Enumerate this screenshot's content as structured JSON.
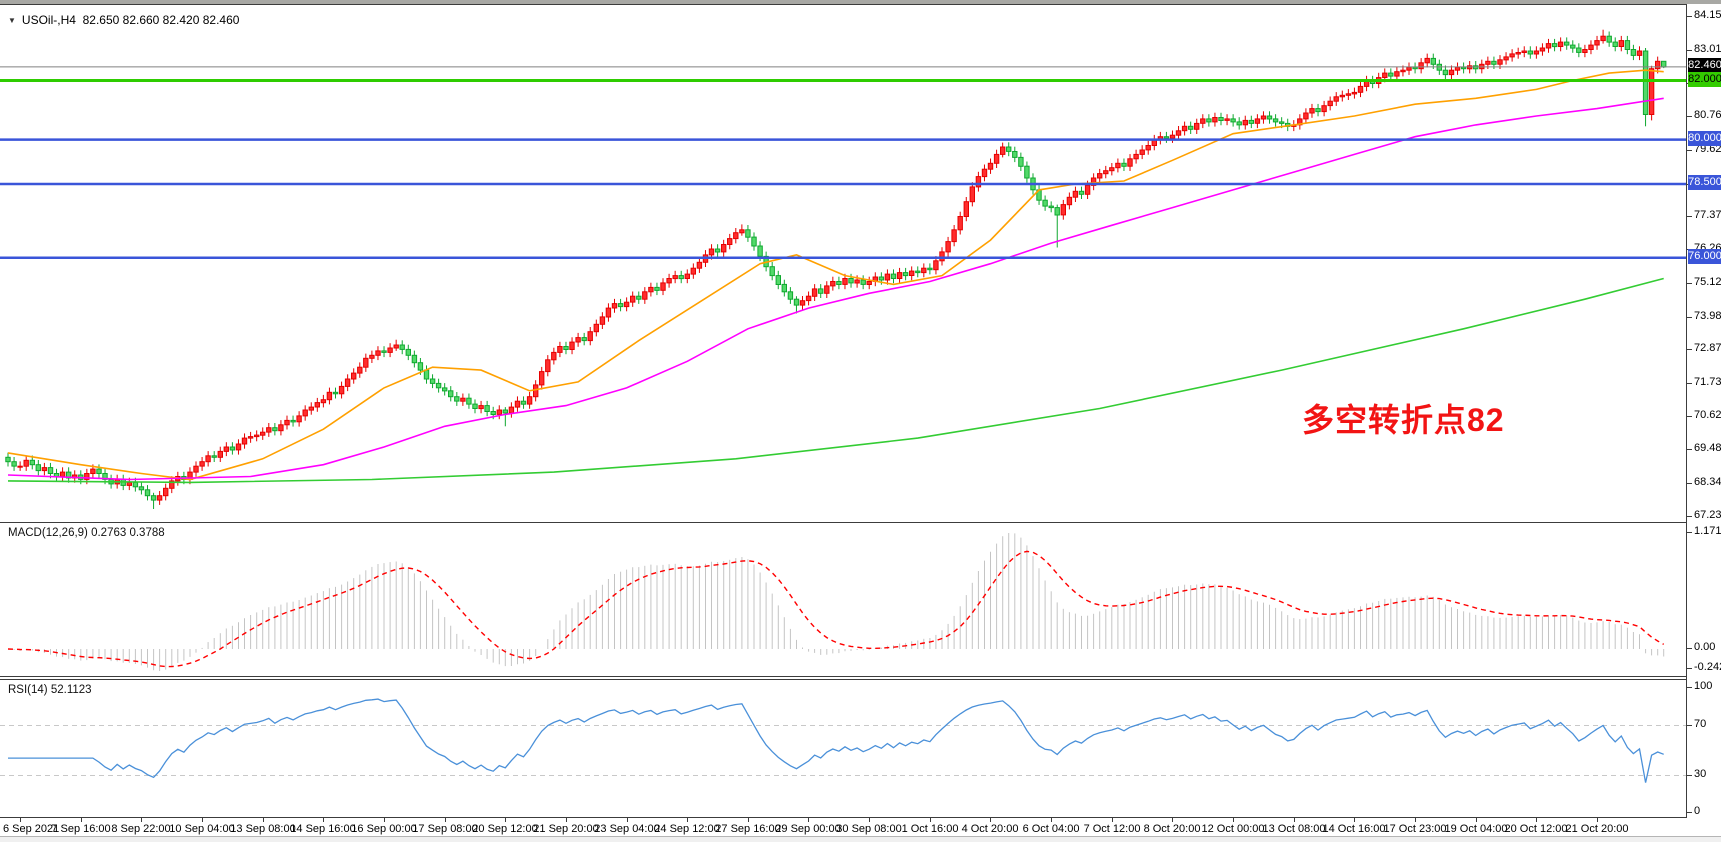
{
  "header": {
    "collapse_icon": "▼",
    "symbol": "USOil-,H4",
    "ohlc": "82.650 82.660 82.420 82.460"
  },
  "annotation": {
    "text": "多空转折点82"
  },
  "colors": {
    "up_fill": "#ff2d2d",
    "up_stroke": "#e60000",
    "down_fill": "#52d969",
    "down_stroke": "#0fa82f",
    "ma_fast": "#ffa000",
    "ma_mid": "#ff00ff",
    "ma_slow": "#33cc33",
    "hline_blue": "#3a55d9",
    "hline_green": "#2ecc00",
    "hline_gray": "#808080",
    "macd_hist": "#c4c4c4",
    "macd_signal": "#ff0000",
    "rsi_line": "#4a90d9",
    "rsi_level": "#c8c8c8",
    "annotation_red": "#f21414",
    "badge_black_bg": "#000000",
    "badge_black_fg": "#ffffff",
    "badge_green_bg": "#33cc00",
    "badge_green_fg": "#000000",
    "badge_blue_bg": "#3a55d9",
    "badge_blue_fg": "#ffffff"
  },
  "price_axis": {
    "ticks": [
      "84.150",
      "83.010",
      "81.870",
      "80.760",
      "79.620",
      "78.480",
      "77.370",
      "76.260",
      "75.120",
      "73.980",
      "72.870",
      "71.730",
      "70.620",
      "69.480",
      "68.340",
      "67.230"
    ],
    "badges": [
      {
        "label": "82.460",
        "value": 82.46,
        "style": "black"
      },
      {
        "label": "82.000",
        "value": 82.0,
        "style": "green"
      },
      {
        "label": "80.000",
        "value": 80.0,
        "style": "blue"
      },
      {
        "label": "78.500",
        "value": 78.5,
        "style": "blue"
      },
      {
        "label": "76.000",
        "value": 76.0,
        "style": "blue"
      }
    ]
  },
  "chart_data": [
    {
      "type": "candlestick",
      "title": "USOil-,H4",
      "timeframe": "H4",
      "ylim": [
        67.16,
        84.56
      ],
      "y_ticks": [
        "84.150",
        "83.010",
        "81.870",
        "80.760",
        "79.620",
        "78.480",
        "77.370",
        "76.260",
        "75.120",
        "73.980",
        "72.870",
        "71.730",
        "70.620",
        "69.480",
        "68.340",
        "67.230"
      ],
      "x_labels": [
        "6 Sep 2021",
        "7 Sep 16:00",
        "8 Sep 22:00",
        "10 Sep 04:00",
        "13 Sep 08:00",
        "14 Sep 16:00",
        "16 Sep 00:00",
        "17 Sep 08:00",
        "20 Sep 12:00",
        "21 Sep 20:00",
        "23 Sep 04:00",
        "24 Sep 12:00",
        "27 Sep 16:00",
        "29 Sep 00:00",
        "30 Sep 08:00",
        "1 Oct 16:00",
        "4 Oct 20:00",
        "6 Oct 04:00",
        "7 Oct 12:00",
        "8 Oct 20:00",
        "12 Oct 00:00",
        "13 Oct 08:00",
        "14 Oct 16:00",
        "17 Oct 23:00",
        "19 Oct 04:00",
        "20 Oct 12:00",
        "21 Oct 20:00"
      ],
      "first_open": 69.25,
      "closes": [
        69.1,
        68.95,
        68.95,
        69.15,
        69.0,
        68.8,
        68.9,
        68.7,
        68.6,
        68.75,
        68.55,
        68.65,
        68.5,
        68.7,
        68.85,
        68.7,
        68.5,
        68.35,
        68.5,
        68.3,
        68.4,
        68.25,
        68.15,
        67.95,
        67.8,
        67.95,
        68.2,
        68.45,
        68.6,
        68.5,
        68.75,
        68.95,
        69.1,
        69.3,
        69.25,
        69.45,
        69.6,
        69.5,
        69.7,
        69.9,
        69.95,
        70.0,
        70.1,
        70.25,
        70.15,
        70.35,
        70.5,
        70.45,
        70.65,
        70.85,
        70.95,
        71.1,
        71.2,
        71.45,
        71.4,
        71.65,
        71.9,
        72.1,
        72.3,
        72.6,
        72.7,
        72.85,
        72.8,
        72.95,
        73.05,
        72.9,
        72.7,
        72.45,
        72.2,
        71.9,
        71.75,
        71.6,
        71.5,
        71.3,
        71.15,
        71.25,
        71.05,
        70.9,
        71.0,
        70.8,
        70.7,
        70.85,
        70.75,
        70.95,
        71.15,
        71.05,
        71.3,
        71.7,
        72.15,
        72.55,
        72.8,
        73.0,
        72.9,
        73.15,
        73.3,
        73.2,
        73.5,
        73.75,
        74.0,
        74.3,
        74.45,
        74.35,
        74.5,
        74.7,
        74.6,
        74.85,
        75.0,
        74.9,
        75.15,
        75.3,
        75.4,
        75.3,
        75.45,
        75.65,
        75.85,
        76.1,
        76.3,
        76.2,
        76.45,
        76.65,
        76.85,
        76.95,
        76.7,
        76.4,
        76.05,
        75.7,
        75.4,
        75.1,
        74.85,
        74.6,
        74.4,
        74.55,
        74.7,
        74.95,
        74.8,
        75.05,
        75.2,
        75.1,
        75.3,
        75.15,
        75.25,
        75.1,
        75.2,
        75.35,
        75.25,
        75.45,
        75.3,
        75.5,
        75.4,
        75.55,
        75.5,
        75.65,
        75.6,
        75.9,
        76.2,
        76.55,
        76.95,
        77.4,
        77.9,
        78.4,
        78.75,
        79.0,
        79.2,
        79.5,
        79.75,
        79.6,
        79.4,
        79.1,
        78.7,
        78.3,
        77.95,
        77.75,
        77.7,
        77.45,
        77.8,
        78.05,
        78.25,
        78.15,
        78.45,
        78.7,
        78.85,
        78.95,
        79.05,
        79.2,
        79.1,
        79.35,
        79.5,
        79.65,
        79.8,
        80.0,
        80.1,
        80.05,
        80.15,
        80.3,
        80.45,
        80.35,
        80.55,
        80.7,
        80.6,
        80.75,
        80.65,
        80.7,
        80.6,
        80.5,
        80.65,
        80.55,
        80.7,
        80.8,
        80.7,
        80.6,
        80.55,
        80.45,
        80.5,
        80.7,
        80.9,
        81.05,
        80.95,
        81.15,
        81.3,
        81.45,
        81.5,
        81.55,
        81.6,
        81.8,
        82.0,
        81.9,
        82.1,
        82.25,
        82.15,
        82.3,
        82.35,
        82.45,
        82.4,
        82.6,
        82.75,
        82.55,
        82.35,
        82.2,
        82.35,
        82.45,
        82.4,
        82.5,
        82.4,
        82.55,
        82.65,
        82.55,
        82.7,
        82.8,
        82.9,
        82.95,
        83.0,
        82.9,
        83.0,
        83.1,
        83.25,
        83.15,
        83.3,
        83.2,
        83.1,
        82.95,
        83.05,
        83.2,
        83.35,
        83.5,
        83.3,
        83.15,
        83.35,
        83.05,
        82.85,
        83.0,
        80.85,
        82.4,
        82.65,
        82.46
      ],
      "default_wick": 0.16,
      "special_wicks": {
        "24": [
          0.1,
          0.3
        ],
        "64": [
          0.18,
          0.1
        ],
        "82": [
          0.1,
          0.45
        ],
        "121": [
          0.18,
          0.1
        ],
        "130": [
          0.1,
          0.28
        ],
        "164": [
          0.15,
          0.1
        ],
        "173": [
          0.1,
          1.1
        ],
        "263": [
          0.22,
          0.1
        ],
        "270": [
          0.1,
          0.4
        ],
        "271": [
          0.1,
          0.2
        ]
      },
      "last_ohlc": [
        82.65,
        82.66,
        82.42,
        82.46
      ],
      "h_lines": [
        {
          "value": 82.46,
          "color_key": "hline_gray",
          "width": 1
        },
        {
          "value": 82.0,
          "color_key": "hline_green",
          "width": 3
        },
        {
          "value": 80.0,
          "color_key": "hline_blue",
          "width": 2.5
        },
        {
          "value": 78.5,
          "color_key": "hline_blue",
          "width": 2.5
        },
        {
          "value": 76.0,
          "color_key": "hline_blue",
          "width": 2.5
        }
      ],
      "moving_averages": [
        {
          "name": "ma-fast",
          "color_key": "ma_fast",
          "points": [
            [
              0,
              69.4
            ],
            [
              12,
              69.0
            ],
            [
              22,
              68.7
            ],
            [
              30,
              68.5
            ],
            [
              42,
              69.2
            ],
            [
              52,
              70.2
            ],
            [
              62,
              71.6
            ],
            [
              70,
              72.3
            ],
            [
              78,
              72.2
            ],
            [
              86,
              71.5
            ],
            [
              94,
              71.8
            ],
            [
              104,
              73.2
            ],
            [
              114,
              74.5
            ],
            [
              124,
              75.8
            ],
            [
              130,
              76.1
            ],
            [
              138,
              75.4
            ],
            [
              146,
              75.1
            ],
            [
              154,
              75.4
            ],
            [
              162,
              76.6
            ],
            [
              170,
              78.3
            ],
            [
              176,
              78.5
            ],
            [
              184,
              78.6
            ],
            [
              192,
              79.3
            ],
            [
              202,
              80.2
            ],
            [
              212,
              80.5
            ],
            [
              222,
              80.8
            ],
            [
              232,
              81.2
            ],
            [
              242,
              81.4
            ],
            [
              252,
              81.7
            ],
            [
              258,
              82.0
            ],
            [
              264,
              82.25
            ],
            [
              270,
              82.35
            ],
            [
              273,
              82.3
            ]
          ]
        },
        {
          "name": "ma-mid",
          "color_key": "ma_mid",
          "points": [
            [
              0,
              68.65
            ],
            [
              20,
              68.5
            ],
            [
              40,
              68.6
            ],
            [
              52,
              69.0
            ],
            [
              62,
              69.6
            ],
            [
              72,
              70.3
            ],
            [
              82,
              70.7
            ],
            [
              92,
              71.0
            ],
            [
              102,
              71.6
            ],
            [
              112,
              72.5
            ],
            [
              122,
              73.6
            ],
            [
              132,
              74.3
            ],
            [
              142,
              74.8
            ],
            [
              152,
              75.2
            ],
            [
              162,
              75.8
            ],
            [
              172,
              76.5
            ],
            [
              182,
              77.1
            ],
            [
              192,
              77.7
            ],
            [
              202,
              78.3
            ],
            [
              212,
              78.9
            ],
            [
              222,
              79.5
            ],
            [
              232,
              80.1
            ],
            [
              242,
              80.5
            ],
            [
              252,
              80.8
            ],
            [
              262,
              81.05
            ],
            [
              273,
              81.4
            ]
          ]
        },
        {
          "name": "ma-slow",
          "color_key": "ma_slow",
          "points": [
            [
              0,
              68.45
            ],
            [
              30,
              68.4
            ],
            [
              60,
              68.5
            ],
            [
              90,
              68.75
            ],
            [
              120,
              69.2
            ],
            [
              150,
              69.9
            ],
            [
              180,
              70.9
            ],
            [
              210,
              72.2
            ],
            [
              240,
              73.6
            ],
            [
              260,
              74.6
            ],
            [
              273,
              75.3
            ]
          ]
        }
      ]
    },
    {
      "type": "bar",
      "label": "MACD(12,26,9)",
      "values_text": "0.2763 0.3788",
      "fast": 12,
      "slow": 26,
      "signal": 9,
      "current_macd": 0.2763,
      "current_signal": 0.3788,
      "y_ticks": [
        "1.1711",
        "0.00",
        "-0.2424"
      ],
      "source": "closes of chart_data[0]"
    },
    {
      "type": "line",
      "label": "RSI(14)",
      "value_text": "52.1123",
      "period": 14,
      "current": 52.1123,
      "levels": [
        70,
        30
      ],
      "y_ticks": [
        "100",
        "70",
        "30",
        "0"
      ],
      "source": "closes of chart_data[0]"
    }
  ]
}
